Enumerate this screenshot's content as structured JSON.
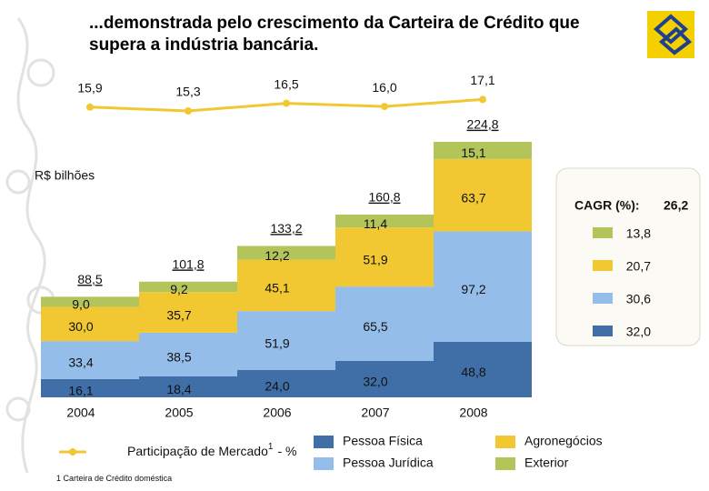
{
  "chart_data": {
    "type": "bar",
    "title": [
      "...demonstrada pelo crescimento da Carteira de Crédito que",
      "supera a indústria bancária."
    ],
    "y_label": "R$ bilhões",
    "categories": [
      "2004",
      "2005",
      "2006",
      "2007",
      "2008"
    ],
    "series": [
      {
        "name": "Pessoa Física",
        "color": "#3f6fa6",
        "values": [
          16.1,
          18.4,
          24.0,
          32.0,
          48.8
        ],
        "value_labels": [
          "16,1",
          "18,4",
          "24,0",
          "32,0",
          "48,8"
        ],
        "cagr": 32.0,
        "cagr_label": "32,0"
      },
      {
        "name": "Pessoa Jurídica",
        "color": "#94bde9",
        "values": [
          33.4,
          38.5,
          51.9,
          65.5,
          97.2
        ],
        "value_labels": [
          "33,4",
          "38,5",
          "51,9",
          "65,5",
          "97,2"
        ],
        "cagr": 30.6,
        "cagr_label": "30,6"
      },
      {
        "name": "Agronegócios",
        "color": "#f2c832",
        "values": [
          30.0,
          35.7,
          45.1,
          51.9,
          63.7
        ],
        "value_labels": [
          "30,0",
          "35,7",
          "45,1",
          "51,9",
          "63,7"
        ],
        "cagr": 20.7,
        "cagr_label": "20,7"
      },
      {
        "name": "Exterior",
        "color": "#b2c45a",
        "values": [
          9.0,
          9.2,
          12.2,
          11.4,
          15.1
        ],
        "value_labels": [
          "9,0",
          "9,2",
          "12,2",
          "11,4",
          "15,1"
        ],
        "cagr": 13.8,
        "cagr_label": "13,8"
      }
    ],
    "totals": [
      88.5,
      101.8,
      133.2,
      160.8,
      224.8
    ],
    "totals_labels": [
      "88,5",
      "101,8",
      "133,2",
      "160,8",
      "224,8"
    ],
    "cagr_title": "CAGR (%):",
    "cagr_total": 26.2,
    "cagr_total_label": "26,2",
    "line": {
      "name": "Participação de Mercado",
      "name_sup": "1",
      "name_suffix": "- %",
      "color": "#f2c832",
      "values": [
        15.9,
        15.3,
        16.5,
        16.0,
        17.1
      ],
      "value_labels": [
        "15,9",
        "15,3",
        "16,5",
        "16,0",
        "17,1"
      ]
    },
    "footnote": {
      "mark": "1",
      "text": "Carteira de Crédito doméstica"
    }
  }
}
